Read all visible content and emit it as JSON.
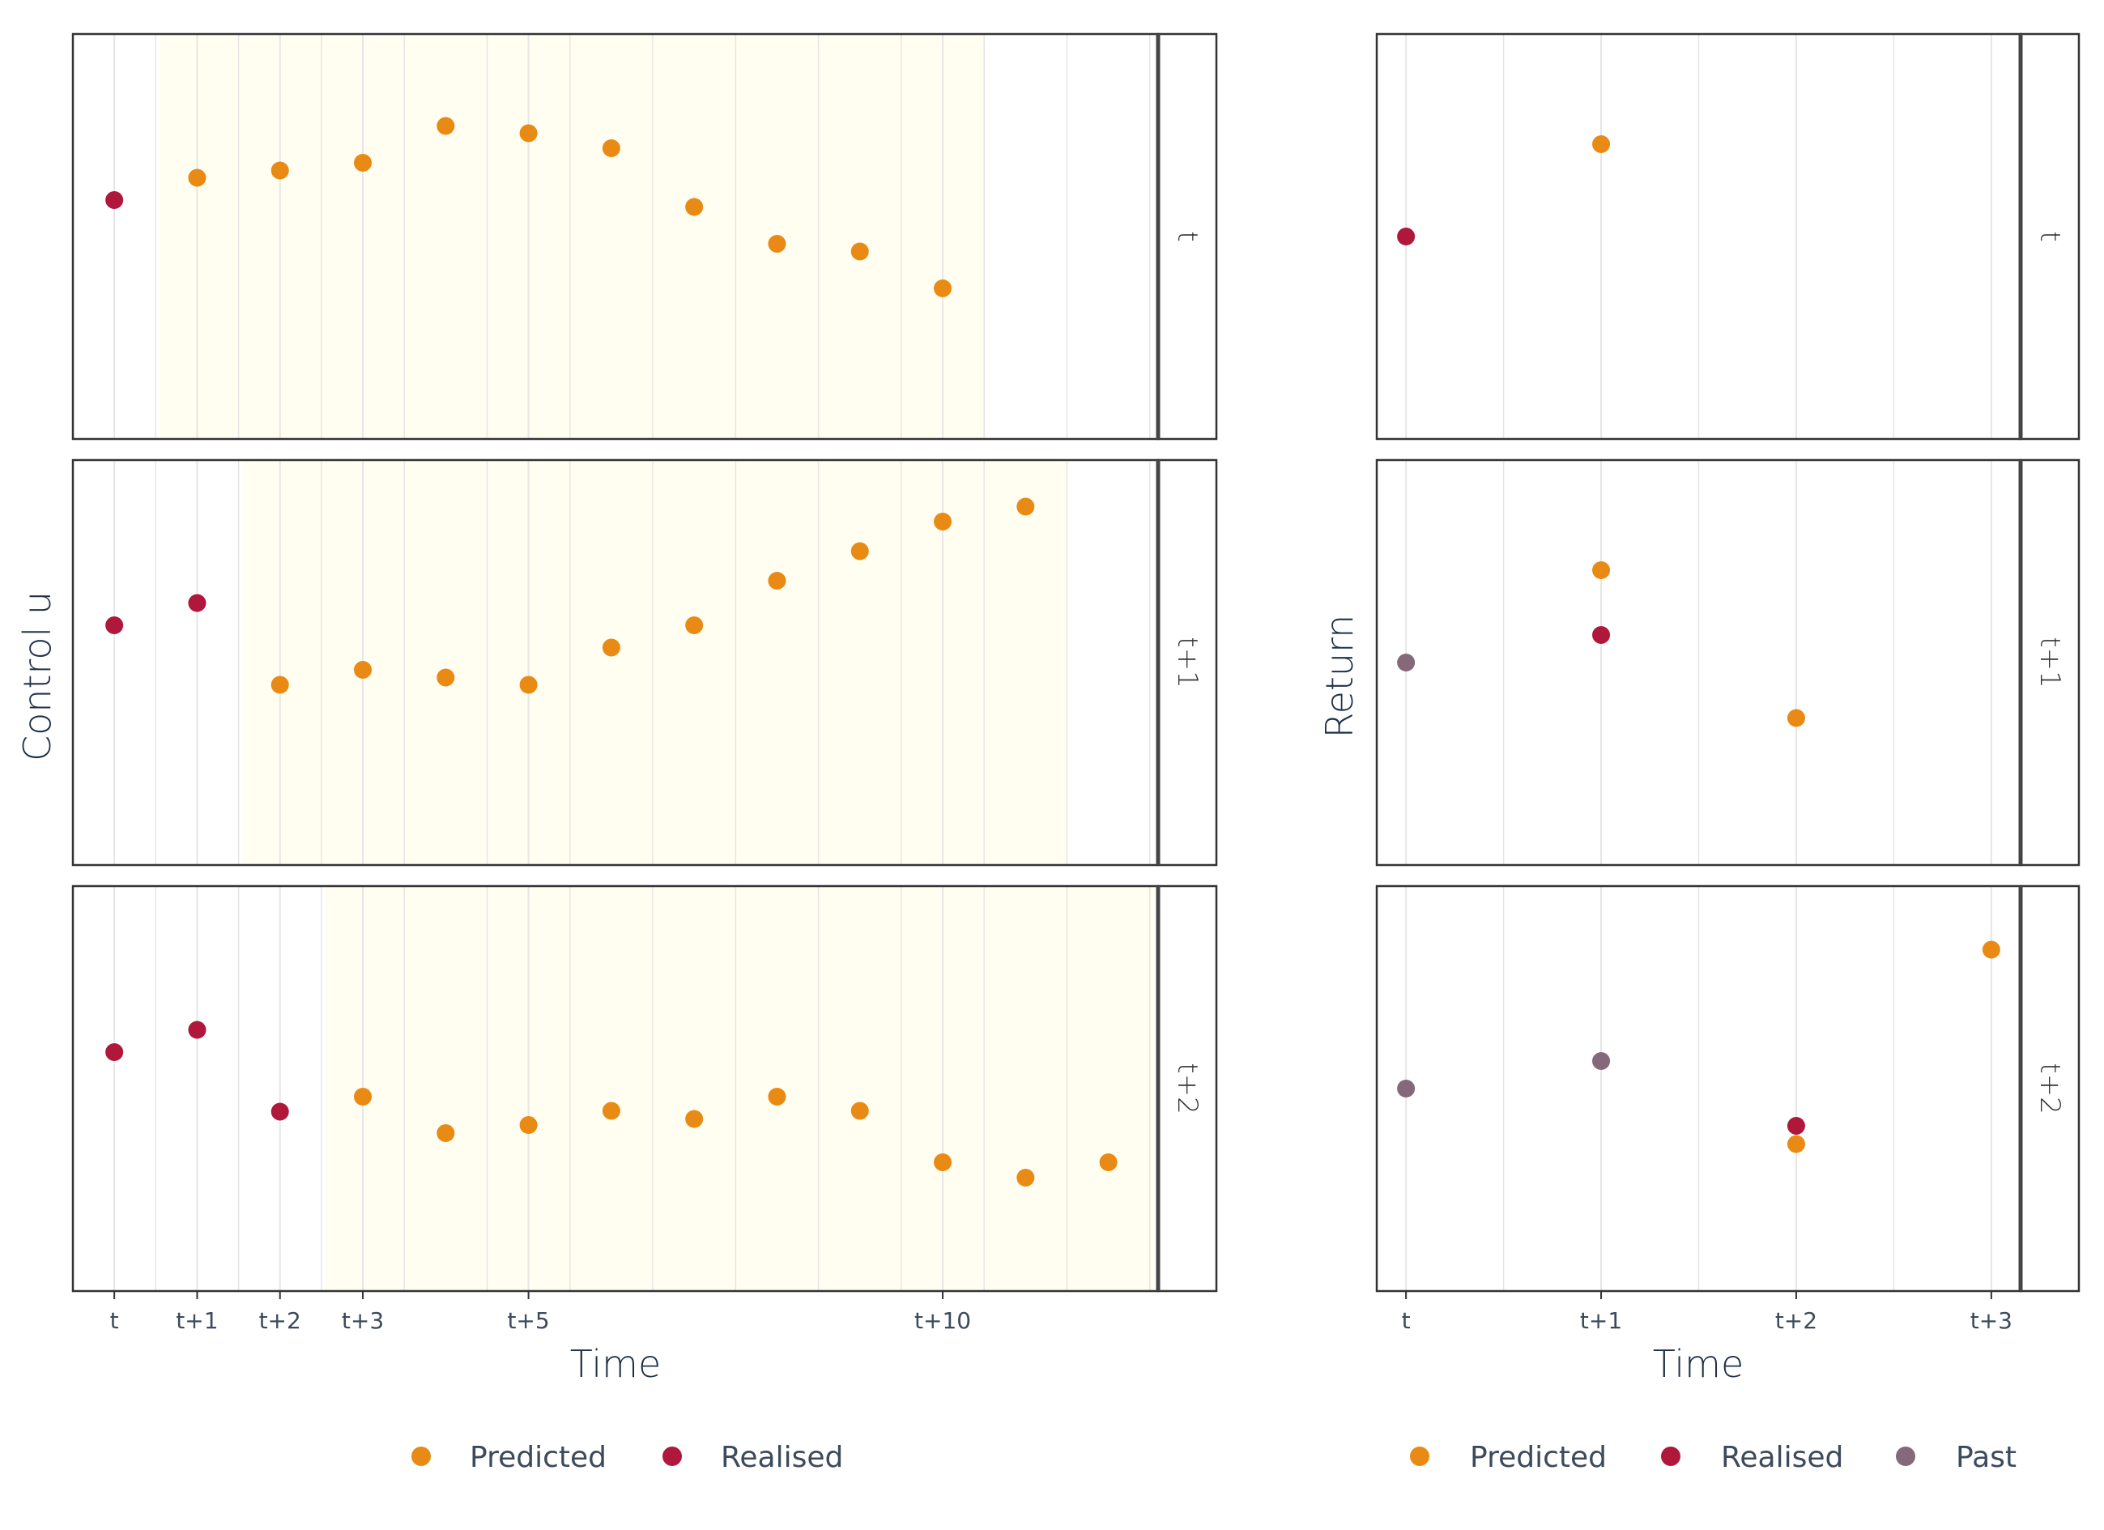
{
  "colors": {
    "predicted": "#E98A15",
    "realised": "#B0183B",
    "past": "#85687A",
    "highlight": "#FFFEF0",
    "grid": "#E6E6E6",
    "panel_border": "#333333"
  },
  "chart_data": [
    {
      "type": "scatter",
      "title": "",
      "xlabel": "Time",
      "ylabel": "Control u",
      "x_ticks": [
        {
          "x": 0,
          "label": "t"
        },
        {
          "x": 1,
          "label": "t+1"
        },
        {
          "x": 2,
          "label": "t+2"
        },
        {
          "x": 3,
          "label": "t+3"
        },
        {
          "x": 5,
          "label": "t+5"
        },
        {
          "x": 10,
          "label": "t+10"
        }
      ],
      "xlim": [
        -0.5,
        12.6
      ],
      "ylim": [
        0,
        1
      ],
      "grid": true,
      "legend": {
        "position": "bottom",
        "entries": [
          "Predicted",
          "Realised"
        ]
      },
      "facets": [
        {
          "label": "t",
          "highlight_x": [
            0.55,
            10.5
          ],
          "series": [
            {
              "name": "Realised",
              "x": [
                0
              ],
              "y": [
                0.59
              ]
            },
            {
              "name": "Predicted",
              "x": [
                1,
                2,
                3,
                4,
                5,
                6,
                7,
                8,
                9,
                10
              ],
              "y": [
                0.645,
                0.663,
                0.682,
                0.773,
                0.755,
                0.718,
                0.573,
                0.482,
                0.463,
                0.372
              ]
            }
          ]
        },
        {
          "label": "t+1",
          "highlight_x": [
            1.55,
            11.5
          ],
          "series": [
            {
              "name": "Realised",
              "x": [
                0,
                1
              ],
              "y": [
                0.592,
                0.647
              ]
            },
            {
              "name": "Predicted",
              "x": [
                2,
                3,
                4,
                5,
                6,
                7,
                8,
                9,
                10,
                11
              ],
              "y": [
                0.445,
                0.482,
                0.463,
                0.445,
                0.537,
                0.592,
                0.702,
                0.775,
                0.848,
                0.885
              ]
            }
          ]
        },
        {
          "label": "t+2",
          "highlight_x": [
            2.55,
            12.55
          ],
          "series": [
            {
              "name": "Realised",
              "x": [
                0,
                1,
                2
              ],
              "y": [
                0.59,
                0.645,
                0.443
              ]
            },
            {
              "name": "Predicted",
              "x": [
                3,
                4,
                5,
                6,
                7,
                8,
                9,
                10,
                11,
                12
              ],
              "y": [
                0.48,
                0.39,
                0.41,
                0.445,
                0.425,
                0.48,
                0.445,
                0.318,
                0.28,
                0.318
              ]
            }
          ]
        }
      ]
    },
    {
      "type": "scatter",
      "title": "",
      "xlabel": "Time",
      "ylabel": "Return",
      "x_ticks": [
        {
          "x": 0,
          "label": "t"
        },
        {
          "x": 1,
          "label": "t+1"
        },
        {
          "x": 2,
          "label": "t+2"
        },
        {
          "x": 3,
          "label": "t+3"
        }
      ],
      "xlim": [
        -0.15,
        3.15
      ],
      "ylim": [
        0,
        1
      ],
      "grid": true,
      "legend": {
        "position": "bottom",
        "entries": [
          "Predicted",
          "Realised",
          "Past"
        ]
      },
      "facets": [
        {
          "label": "t",
          "series": [
            {
              "name": "Realised",
              "x": [
                0
              ],
              "y": [
                0.5
              ]
            },
            {
              "name": "Predicted",
              "x": [
                1
              ],
              "y": [
                0.728
              ]
            }
          ]
        },
        {
          "label": "t+1",
          "series": [
            {
              "name": "Past",
              "x": [
                0
              ],
              "y": [
                0.5
              ]
            },
            {
              "name": "Realised",
              "x": [
                1
              ],
              "y": [
                0.568
              ]
            },
            {
              "name": "Predicted",
              "x": [
                1,
                2
              ],
              "y": [
                0.728,
                0.363
              ]
            }
          ]
        },
        {
          "label": "t+2",
          "series": [
            {
              "name": "Past",
              "x": [
                0,
                1
              ],
              "y": [
                0.5,
                0.568
              ]
            },
            {
              "name": "Realised",
              "x": [
                2
              ],
              "y": [
                0.408
              ]
            },
            {
              "name": "Predicted",
              "x": [
                2,
                3
              ],
              "y": [
                0.363,
                0.843
              ]
            }
          ]
        }
      ]
    }
  ]
}
